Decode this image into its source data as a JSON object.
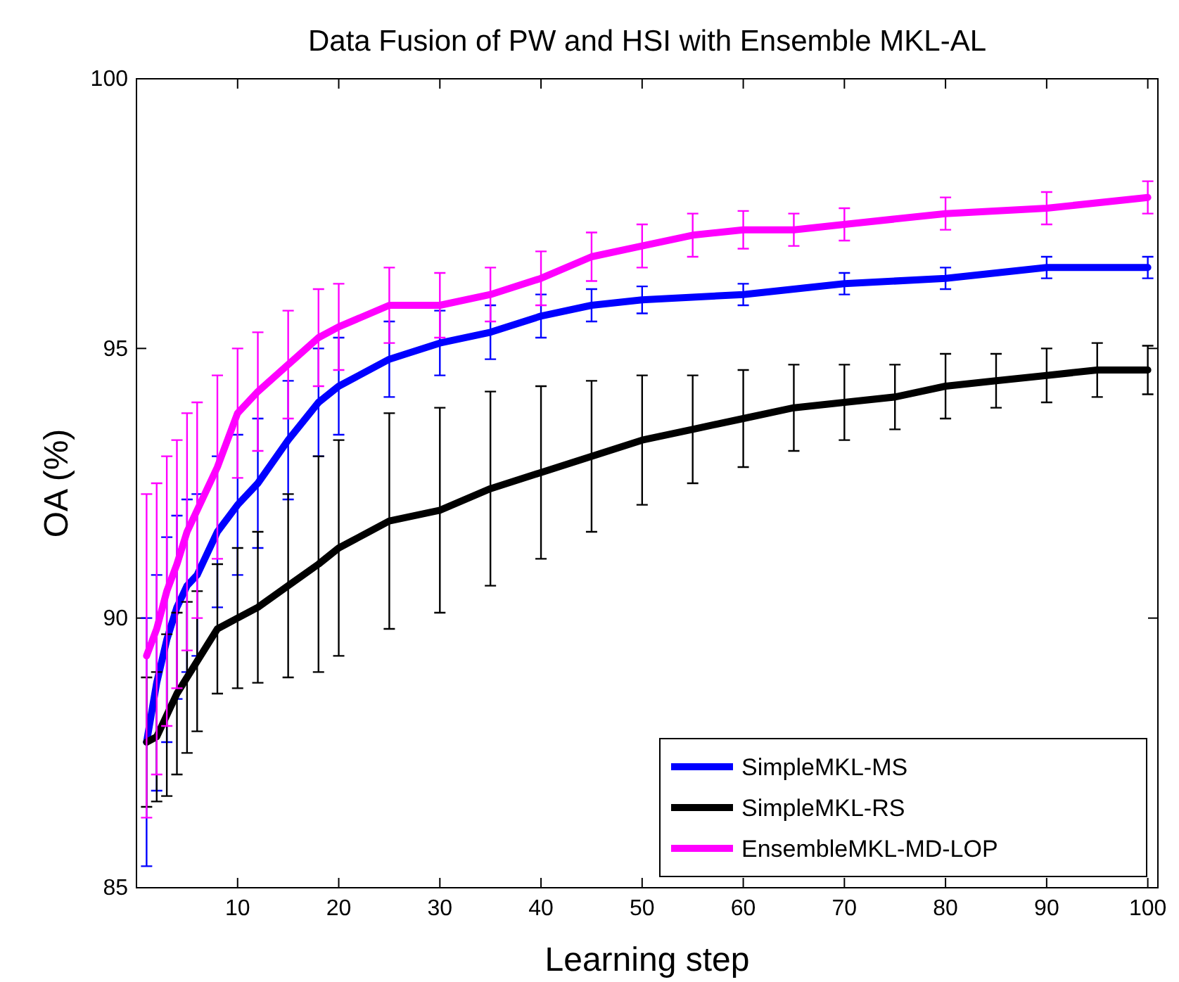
{
  "chart_data": {
    "type": "line",
    "title": "Data Fusion of PW and HSI with Ensemble MKL-AL",
    "xlabel": "Learning step",
    "ylabel": "OA (%)",
    "xlim": [
      0,
      101
    ],
    "xticks": [
      10,
      20,
      30,
      40,
      50,
      60,
      70,
      80,
      90,
      100
    ],
    "ylim": [
      85,
      100
    ],
    "yticks": [
      85,
      90,
      95,
      100
    ],
    "grid": false,
    "legend": "bottom right",
    "marker": "none",
    "line_style": "solid",
    "series": [
      {
        "name": "SimpleMKL-MS",
        "color": "#0000ff",
        "x": [
          1,
          2,
          3,
          4,
          5,
          6,
          8,
          10,
          12,
          15,
          18,
          20,
          25,
          30,
          35,
          40,
          45,
          50,
          60,
          70,
          80,
          90,
          100
        ],
        "values": [
          87.7,
          88.8,
          89.6,
          90.2,
          90.6,
          90.8,
          91.6,
          92.1,
          92.5,
          93.3,
          94.0,
          94.3,
          94.8,
          95.1,
          95.3,
          95.6,
          95.8,
          95.9,
          96.0,
          96.2,
          96.3,
          96.5,
          96.5
        ],
        "errors": [
          2.3,
          2.0,
          1.9,
          1.7,
          1.6,
          1.5,
          1.4,
          1.3,
          1.2,
          1.1,
          1.0,
          0.9,
          0.7,
          0.6,
          0.5,
          0.4,
          0.3,
          0.25,
          0.2,
          0.2,
          0.2,
          0.2,
          0.2
        ]
      },
      {
        "name": "SimpleMKL-RS",
        "color": "#000000",
        "x": [
          1,
          2,
          3,
          4,
          5,
          6,
          8,
          10,
          12,
          15,
          18,
          20,
          25,
          30,
          35,
          40,
          45,
          50,
          55,
          60,
          65,
          70,
          75,
          80,
          85,
          90,
          95,
          100
        ],
        "values": [
          87.7,
          87.8,
          88.2,
          88.6,
          88.9,
          89.2,
          89.8,
          90.0,
          90.2,
          90.6,
          91.0,
          91.3,
          91.8,
          92.0,
          92.4,
          92.7,
          93.0,
          93.3,
          93.5,
          93.7,
          93.9,
          94.0,
          94.1,
          94.3,
          94.4,
          94.5,
          94.6,
          94.6
        ],
        "errors": [
          1.2,
          1.2,
          1.5,
          1.5,
          1.4,
          1.3,
          1.2,
          1.3,
          1.4,
          1.7,
          2.0,
          2.0,
          2.0,
          1.9,
          1.8,
          1.6,
          1.4,
          1.2,
          1.0,
          0.9,
          0.8,
          0.7,
          0.6,
          0.6,
          0.5,
          0.5,
          0.5,
          0.45
        ]
      },
      {
        "name": "EnsembleMKL-MD-LOP",
        "color": "#ff00ff",
        "x": [
          1,
          2,
          3,
          4,
          5,
          6,
          8,
          10,
          12,
          15,
          18,
          20,
          25,
          30,
          35,
          40,
          45,
          50,
          55,
          60,
          65,
          70,
          80,
          90,
          100
        ],
        "values": [
          89.3,
          89.8,
          90.5,
          91.0,
          91.6,
          92.0,
          92.8,
          93.8,
          94.2,
          94.7,
          95.2,
          95.4,
          95.8,
          95.8,
          96.0,
          96.3,
          96.7,
          96.9,
          97.1,
          97.2,
          97.2,
          97.3,
          97.5,
          97.6,
          97.8
        ],
        "errors": [
          3.0,
          2.7,
          2.5,
          2.3,
          2.2,
          2.0,
          1.7,
          1.2,
          1.1,
          1.0,
          0.9,
          0.8,
          0.7,
          0.6,
          0.5,
          0.5,
          0.45,
          0.4,
          0.4,
          0.35,
          0.3,
          0.3,
          0.3,
          0.3,
          0.3
        ]
      }
    ]
  }
}
